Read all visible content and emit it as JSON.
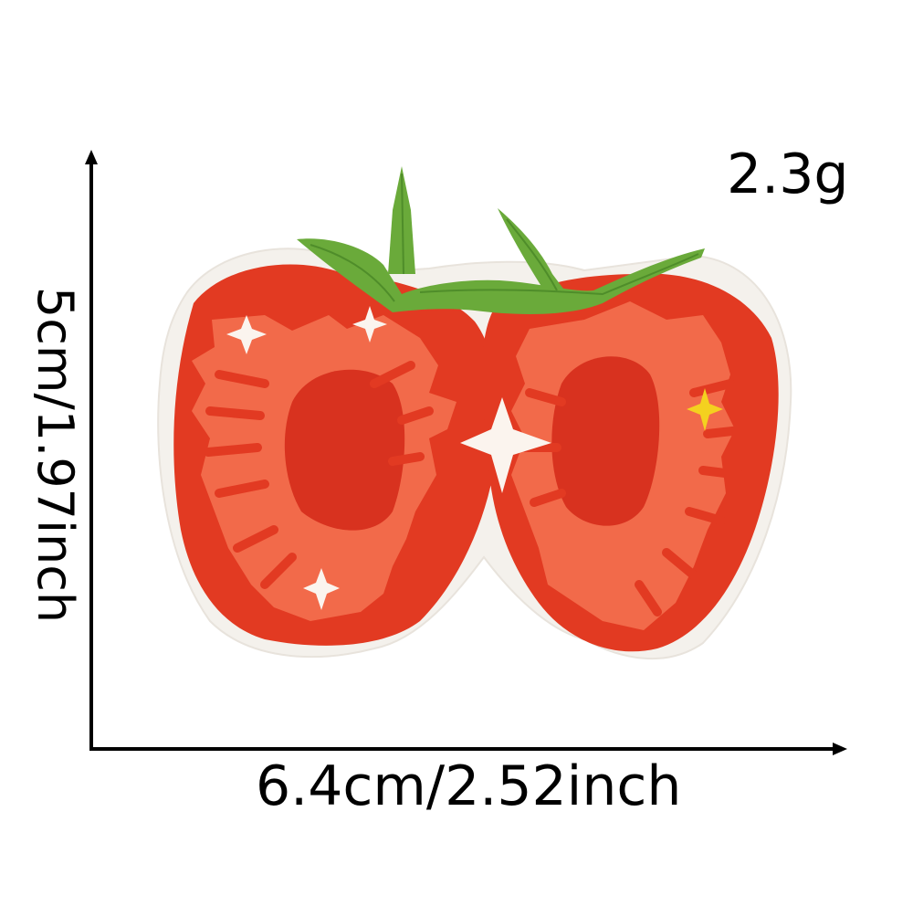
{
  "product": {
    "weight": "2.3g",
    "height_label": "5cm/1.97inch",
    "width_label": "6.4cm/2.52inch"
  },
  "colors": {
    "border": "#f4f1ec",
    "tomato_red": "#e23a22",
    "tomato_dark": "#c9261b",
    "flesh": "#f26a4a",
    "inner": "#d8321f",
    "stem": "#6aaa3a",
    "stem_dark": "#4f8d2a",
    "sparkle": "#fbf4ee",
    "sparkle_yellow": "#f4d11f",
    "axis": "#000000"
  }
}
